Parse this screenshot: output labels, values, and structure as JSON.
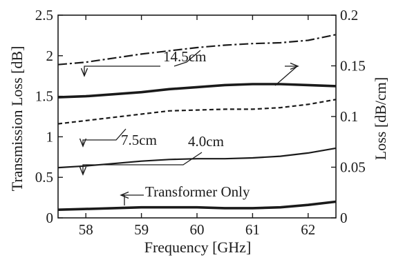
{
  "chart_data": {
    "type": "line",
    "xlabel": "Frequency [GHz]",
    "ylabel_left": "Transmission Loss [dB]",
    "ylabel_right": "Loss [dB/cm]",
    "xlim": [
      57.5,
      62.5
    ],
    "ylim_left": [
      0,
      2.5
    ],
    "ylim_right": [
      0,
      0.2
    ],
    "x_ticks": [
      "58",
      "59",
      "60",
      "61",
      "62"
    ],
    "y_left_ticks": [
      "0",
      "0.5",
      "1",
      "1.5",
      "2",
      "2.5"
    ],
    "y_right_ticks": [
      "0",
      "0.05",
      "0.1",
      "0.15",
      "0.2"
    ],
    "grid": false,
    "series": [
      {
        "name": "14.5cm",
        "axis": "left",
        "style": "dashdot",
        "x": [
          57.5,
          58.0,
          58.5,
          59.0,
          59.5,
          60.0,
          60.5,
          61.0,
          61.5,
          62.0,
          62.5
        ],
        "values": [
          1.89,
          1.92,
          1.97,
          2.02,
          2.06,
          2.1,
          2.13,
          2.15,
          2.16,
          2.19,
          2.26
        ]
      },
      {
        "name": "7.5cm",
        "axis": "left",
        "style": "dashed",
        "x": [
          57.5,
          58.0,
          58.5,
          59.0,
          59.5,
          60.0,
          60.5,
          61.0,
          61.5,
          62.0,
          62.5
        ],
        "values": [
          1.16,
          1.2,
          1.24,
          1.28,
          1.32,
          1.33,
          1.34,
          1.34,
          1.36,
          1.4,
          1.46
        ]
      },
      {
        "name": "4.0cm",
        "axis": "left",
        "style": "solid",
        "x": [
          57.5,
          58.0,
          58.5,
          59.0,
          59.5,
          60.0,
          60.5,
          61.0,
          61.5,
          62.0,
          62.5
        ],
        "values": [
          0.62,
          0.64,
          0.67,
          0.7,
          0.72,
          0.73,
          0.73,
          0.74,
          0.76,
          0.8,
          0.86
        ]
      },
      {
        "name": "Transformer Only",
        "axis": "left",
        "style": "solid-thick",
        "x": [
          57.5,
          58.0,
          58.5,
          59.0,
          59.5,
          60.0,
          60.5,
          61.0,
          61.5,
          62.0,
          62.5
        ],
        "values": [
          0.1,
          0.11,
          0.12,
          0.13,
          0.13,
          0.13,
          0.12,
          0.12,
          0.13,
          0.16,
          0.2
        ]
      },
      {
        "name": "Loss",
        "axis": "right",
        "style": "solid-thick",
        "x": [
          57.5,
          58.0,
          58.5,
          59.0,
          59.5,
          60.0,
          60.5,
          61.0,
          61.5,
          62.0,
          62.5
        ],
        "values": [
          0.119,
          0.12,
          0.122,
          0.124,
          0.127,
          0.129,
          0.131,
          0.132,
          0.132,
          0.131,
          0.13
        ]
      }
    ],
    "annotations": [
      {
        "text": "14.5cm",
        "arrow_direction": "left",
        "series": "14.5cm"
      },
      {
        "text": "",
        "arrow_direction": "right",
        "series": "Loss"
      },
      {
        "text": "7.5cm",
        "arrow_direction": "left",
        "series": "7.5cm"
      },
      {
        "text": "4.0cm",
        "arrow_direction": "left",
        "series": "4.0cm"
      },
      {
        "text": "Transformer Only",
        "arrow_direction": "left",
        "series": "Transformer Only"
      }
    ],
    "colors": {
      "line": "#1a1a1a",
      "background": "#ffffff"
    }
  }
}
